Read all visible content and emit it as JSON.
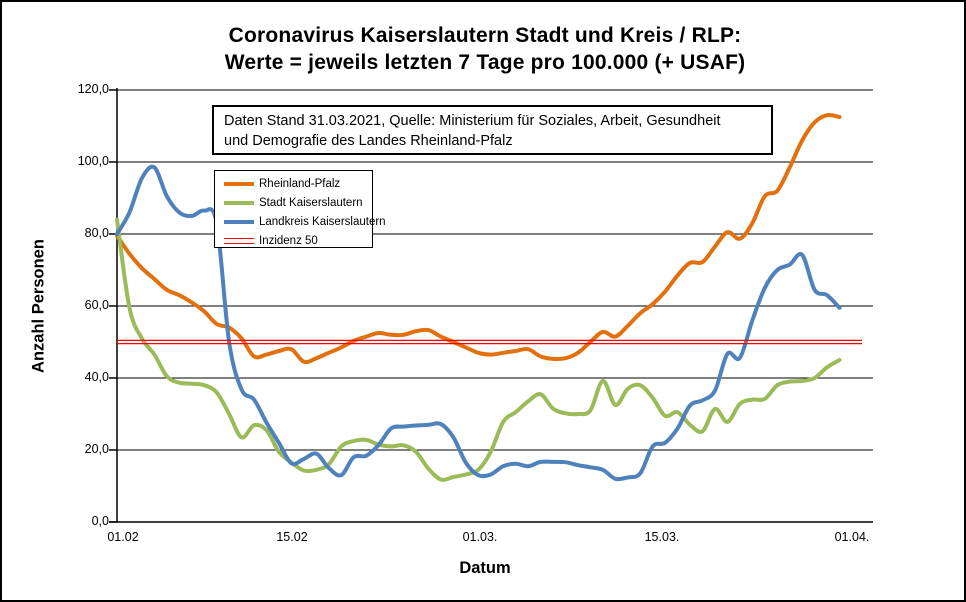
{
  "chart_data": {
    "type": "line",
    "title": "Coronavirus Kaiserslautern Stadt und Kreis / RLP: Werte = jeweils letzten 7 Tage pro 100.000 (+ USAF)",
    "title_lines": [
      "Coronavirus Kaiserslautern Stadt und Kreis / RLP:",
      "Werte = jeweils letzten 7 Tage pro 100.000 (+ USAF)"
    ],
    "annotation": {
      "line1": "Daten Stand 31.03.2021, Quelle: Ministerium für Soziales, Arbeit, Gesundheit",
      "line2": "und Demografie des Landes Rheinland-Pfalz"
    },
    "xlabel": "Datum",
    "ylabel": "Anzahl Personen",
    "ylim": [
      0,
      120
    ],
    "y_ticks": [
      0,
      20,
      40,
      60,
      80,
      100,
      120
    ],
    "y_tick_labels": [
      "0,0",
      "20,0",
      "40,0",
      "60,0",
      "80,0",
      "100,0",
      "120,0"
    ],
    "x_tick_labels": [
      "01.02",
      "15.02",
      "01.03.",
      "15.03.",
      "01.04."
    ],
    "x_tick_days": [
      0,
      14,
      28,
      42,
      59
    ],
    "x_axis_total_days": 59,
    "grid": true,
    "legend_position": "inside-upper-left",
    "series": [
      {
        "name": "Rheinland-Pfalz",
        "color": "#E2700F",
        "style": "smooth-line",
        "values": [
          79.5,
          74.5,
          70.5,
          67.5,
          64.5,
          63,
          61,
          58.5,
          55,
          54,
          51,
          46,
          46.5,
          47.5,
          48,
          44.5,
          45.5,
          47,
          48.5,
          50.3,
          51.5,
          52.5,
          52,
          52,
          53,
          53.3,
          51.5,
          50,
          48.5,
          47,
          46.5,
          47,
          47.5,
          48,
          46,
          45.3,
          45.5,
          47,
          50,
          52.8,
          51.5,
          54.5,
          58,
          60.5,
          64,
          68.5,
          72,
          72.2,
          76.5,
          80.5,
          78.7,
          83,
          90.5,
          92,
          98.5,
          106,
          111,
          113,
          112.5
        ]
      },
      {
        "name": "Stadt Kaiserslautern",
        "color": "#9BBB59",
        "style": "smooth-line",
        "values": [
          84,
          59.5,
          51,
          46.5,
          40.5,
          38.7,
          38.4,
          38,
          36,
          30,
          23.5,
          26.9,
          25.5,
          19.5,
          16.5,
          14.3,
          14.5,
          16,
          21,
          22.5,
          22.8,
          21.5,
          21,
          21.3,
          19.5,
          14.8,
          11.8,
          12.5,
          13.2,
          14.5,
          19.5,
          27.8,
          30.5,
          33.5,
          35.5,
          31.5,
          30.2,
          30,
          31,
          39.2,
          32.5,
          37,
          38,
          34.5,
          29.5,
          30.5,
          27,
          25.2,
          31.4,
          27.8,
          32.8,
          34,
          34.2,
          38,
          39,
          39.2,
          40,
          43,
          45
        ]
      },
      {
        "name": "Landkreis Kaiserslautern",
        "color": "#4F81BD",
        "style": "smooth-line",
        "values": [
          80,
          86,
          95.5,
          98.5,
          90.5,
          86,
          85,
          86.5,
          83,
          50,
          36.8,
          34,
          27.6,
          22,
          16.3,
          17.5,
          19,
          15,
          13,
          18,
          18.4,
          21.4,
          26,
          26.5,
          26.8,
          27,
          27.2,
          23.5,
          16.5,
          13,
          13.2,
          15.5,
          16.2,
          15.5,
          16.7,
          16.7,
          16.6,
          15.8,
          15.2,
          14.5,
          12,
          12.4,
          13.5,
          21,
          22,
          26,
          32.4,
          33.8,
          36.5,
          46.7,
          45.6,
          56,
          65,
          70,
          71.5,
          74.2,
          64.5,
          63,
          59.5
        ]
      },
      {
        "name": "Inzidenz 50",
        "color": "#FF0000",
        "style": "double-constant",
        "value": 50
      }
    ]
  }
}
